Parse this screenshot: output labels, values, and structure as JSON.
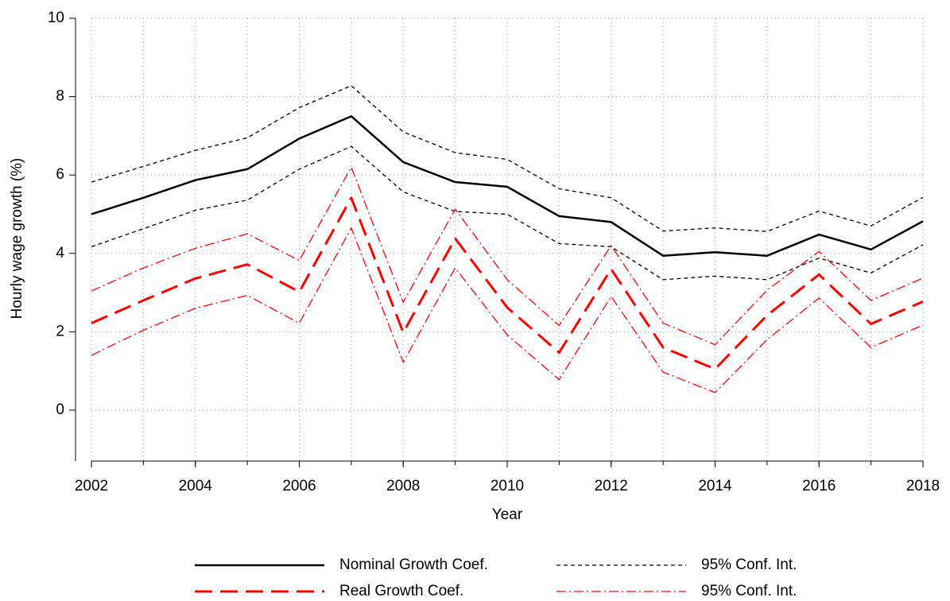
{
  "chart_data": {
    "type": "line",
    "xlabel": "Year",
    "ylabel": "Hourly wage growth (%)",
    "x": [
      2002,
      2003,
      2004,
      2005,
      2006,
      2007,
      2008,
      2009,
      2010,
      2011,
      2012,
      2013,
      2014,
      2015,
      2016,
      2017,
      2018
    ],
    "xlim": [
      2002,
      2018
    ],
    "xticks": [
      2002,
      2004,
      2006,
      2008,
      2010,
      2012,
      2014,
      2016,
      2018
    ],
    "ylim": [
      -1.3,
      10
    ],
    "yticks": [
      0,
      2,
      4,
      6,
      8,
      10
    ],
    "grid": true,
    "series": [
      {
        "name": "Nominal Growth Coef.",
        "color": "#000000",
        "dash": "none",
        "width": 2.5,
        "values": [
          5.0,
          5.42,
          5.87,
          6.15,
          6.93,
          7.5,
          6.33,
          5.82,
          5.7,
          4.95,
          4.8,
          3.94,
          4.03,
          3.94,
          4.48,
          4.1,
          4.82
        ]
      },
      {
        "name": "95% Conf. Int.",
        "color": "#000000",
        "dash": "5 4",
        "width": 1.3,
        "upper": [
          5.82,
          6.22,
          6.63,
          6.95,
          7.72,
          8.28,
          7.1,
          6.57,
          6.4,
          5.65,
          5.42,
          4.57,
          4.65,
          4.56,
          5.08,
          4.7,
          5.43
        ],
        "lower": [
          4.17,
          4.63,
          5.1,
          5.36,
          6.15,
          6.73,
          5.57,
          5.07,
          5.0,
          4.25,
          4.17,
          3.33,
          3.42,
          3.33,
          3.88,
          3.5,
          4.22
        ]
      },
      {
        "name": "Real Growth Coef.",
        "color": "#ff0000",
        "dash": "22 10",
        "width": 3,
        "values": [
          2.22,
          2.8,
          3.36,
          3.72,
          3.02,
          5.42,
          1.98,
          4.38,
          2.62,
          1.47,
          3.6,
          1.6,
          1.05,
          2.42,
          3.46,
          2.2,
          2.77
        ]
      },
      {
        "name": "95% Conf. Int.",
        "color": "#ff0000",
        "dash": "12 4 2 4",
        "width": 1.3,
        "upper": [
          3.04,
          3.63,
          4.13,
          4.5,
          3.82,
          6.2,
          2.75,
          5.13,
          3.33,
          2.16,
          4.2,
          2.22,
          1.67,
          3.06,
          4.05,
          2.8,
          3.37
        ],
        "lower": [
          1.4,
          2.04,
          2.6,
          2.93,
          2.22,
          4.65,
          1.22,
          3.63,
          1.92,
          0.78,
          2.9,
          0.97,
          0.45,
          1.8,
          2.86,
          1.6,
          2.17
        ]
      }
    ]
  }
}
